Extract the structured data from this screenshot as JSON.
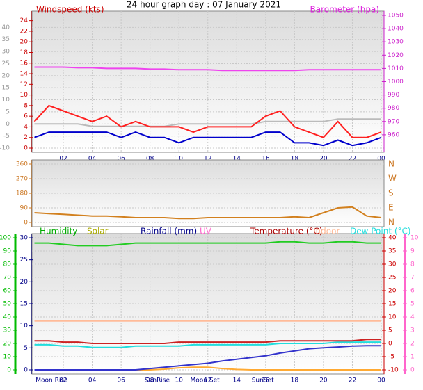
{
  "chart_data": [
    {
      "type": "line",
      "title": "24 hour graph day : 07 January 2021",
      "labels": [
        {
          "text": "Windspeed (kts)",
          "color": "#cc0000"
        },
        {
          "text": "Barometer (hpa)",
          "color": "#dd22dd"
        }
      ],
      "xlim": [
        0,
        24
      ],
      "xticks": [
        {
          "value": 2,
          "label": "02"
        },
        {
          "value": 4,
          "label": "04"
        },
        {
          "value": 6,
          "label": "06"
        },
        {
          "value": 8,
          "label": "08"
        },
        10,
        12,
        14,
        16,
        18,
        20,
        22,
        {
          "value": 24,
          "label": "00"
        }
      ],
      "grid": true,
      "axes": [
        {
          "lim": [
            -10,
            45
          ],
          "ticks": [
            -10,
            -5,
            0,
            5,
            10,
            15,
            20,
            25,
            30,
            35,
            40
          ],
          "color": "#999999"
        },
        {
          "lim": [
            0,
            25
          ],
          "ticks": [
            0,
            2,
            4,
            6,
            8,
            10,
            12,
            14,
            16,
            18,
            20,
            22,
            24
          ],
          "color": "#cc0000"
        },
        {
          "lim": [
            950,
            1050
          ],
          "ticks": [
            960,
            970,
            980,
            990,
            1000,
            1010,
            1020,
            1030,
            1040,
            1050
          ],
          "color": "#cc22cc"
        }
      ],
      "x": [
        0,
        1,
        2,
        3,
        4,
        5,
        6,
        7,
        8,
        9,
        10,
        11,
        12,
        13,
        14,
        15,
        16,
        17,
        18,
        19,
        20,
        21,
        22,
        23,
        24
      ],
      "series": [
        {
          "color": "#bbbbbb",
          "axis": 0,
          "values": [
            0,
            0,
            0,
            0,
            -1,
            -1,
            -1,
            -1,
            -1,
            -1,
            0,
            0,
            0,
            0,
            0,
            0,
            1,
            1,
            1,
            1,
            1,
            2,
            2,
            2,
            2
          ]
        },
        {
          "color": "#ff2020",
          "axis": 1,
          "values": [
            5,
            8,
            7,
            6,
            5,
            6,
            4,
            5,
            4,
            4,
            4,
            3,
            4,
            4,
            4,
            4,
            6,
            7,
            4,
            3,
            2,
            5,
            2,
            2,
            3
          ]
        },
        {
          "color": "#0000cc",
          "axis": 1,
          "values": [
            2,
            3,
            3,
            3,
            3,
            3,
            2,
            3,
            2,
            2,
            1,
            2,
            2,
            2,
            2,
            2,
            3,
            3,
            1,
            1,
            0.5,
            1.5,
            0.5,
            1,
            2
          ]
        },
        {
          "color": "#ee44ee",
          "axis": 2,
          "values": [
            1011,
            1011,
            1011,
            1010.5,
            1010.5,
            1010,
            1010,
            1010,
            1009.5,
            1009.5,
            1009,
            1009,
            1009,
            1008.5,
            1008.5,
            1008.5,
            1008.5,
            1008.5,
            1008.5,
            1009,
            1009,
            1009,
            1009,
            1009,
            1009
          ]
        }
      ]
    },
    {
      "type": "line",
      "xlim": [
        0,
        24
      ],
      "grid": true,
      "axes": [
        {
          "lim": [
            0,
            360
          ],
          "ticks": [
            0,
            90,
            180,
            270,
            360
          ],
          "color": "#cc7722"
        },
        {
          "lim": [
            0,
            360
          ],
          "ticks": [
            {
              "value": 0,
              "label": "N"
            },
            {
              "value": 90,
              "label": "E"
            },
            {
              "value": 180,
              "label": "S"
            },
            {
              "value": 270,
              "label": "W"
            },
            {
              "value": 360,
              "label": "N"
            }
          ],
          "color": "#cc7722"
        }
      ],
      "x": [
        0,
        1,
        2,
        3,
        4,
        5,
        6,
        7,
        8,
        9,
        10,
        11,
        12,
        13,
        14,
        15,
        16,
        17,
        18,
        19,
        20,
        21,
        22,
        23,
        24
      ],
      "series": [
        {
          "color": "#d2801e",
          "axis": 0,
          "values": [
            60,
            55,
            50,
            45,
            40,
            40,
            35,
            30,
            30,
            30,
            25,
            25,
            30,
            30,
            30,
            30,
            30,
            30,
            35,
            30,
            60,
            90,
            95,
            40,
            30
          ]
        }
      ]
    },
    {
      "type": "line",
      "labels": [
        {
          "text": "Humidity",
          "color": "#00aa00"
        },
        {
          "text": "Solar",
          "color": "#aaaa00"
        },
        {
          "text": "Rainfall (mm)",
          "color": "#000088"
        },
        {
          "text": "UV",
          "color": "#ff66cc"
        },
        {
          "text": "Temperature (°C)",
          "color": "#aa0000"
        },
        {
          "text": "Indoor",
          "color": "#ffbb99"
        },
        {
          "text": "Dew Point (°C)",
          "color": "#22dddd"
        }
      ],
      "xlim": [
        0,
        24
      ],
      "xticks": [
        {
          "value": 2,
          "label": "02"
        },
        {
          "value": 4,
          "label": "04"
        },
        {
          "value": 6,
          "label": "06"
        },
        {
          "value": 8,
          "label": "08"
        },
        10,
        12,
        14,
        16,
        18,
        20,
        22,
        {
          "value": 24,
          "label": "00"
        }
      ],
      "annotations": [
        {
          "label": "Moon Rise",
          "x": 1.2
        },
        {
          "label": "SunRise",
          "x": 8.5
        },
        {
          "label": "Moon Set",
          "x": 11.8
        },
        {
          "label": "SunSet",
          "x": 15.8
        }
      ],
      "grid": true,
      "axes": [
        {
          "lim": [
            0,
            100
          ],
          "ticks": [
            0,
            10,
            20,
            30,
            40,
            50,
            60,
            70,
            80,
            90,
            100
          ],
          "color": "#00bb00"
        },
        {
          "lim": [
            0,
            30
          ],
          "ticks": [
            0,
            5,
            10,
            15,
            20,
            25,
            30
          ],
          "color": "#000088"
        },
        {
          "lim": [
            -10,
            40
          ],
          "ticks": [
            -10,
            -5,
            0,
            5,
            10,
            15,
            20,
            25,
            30,
            35,
            40
          ],
          "color": "#cc0000"
        },
        {
          "lim": [
            0,
            10
          ],
          "ticks": [
            0,
            1,
            2,
            3,
            4,
            5,
            6,
            7,
            8,
            9,
            10
          ],
          "color": "#ff66cc"
        }
      ],
      "x": [
        0,
        1,
        2,
        3,
        4,
        5,
        6,
        7,
        8,
        9,
        10,
        11,
        12,
        13,
        14,
        15,
        16,
        17,
        18,
        19,
        20,
        21,
        22,
        23,
        24
      ],
      "series": [
        {
          "color": "#22cc22",
          "axis": 0,
          "values": [
            96,
            96,
            95,
            94,
            94,
            94,
            95,
            96,
            96,
            96,
            96,
            96,
            96,
            96,
            96,
            96,
            96,
            97,
            97,
            96,
            96,
            97,
            97,
            96,
            96
          ]
        },
        {
          "color": "#ffaa33",
          "axis": 0,
          "values": [
            0,
            0,
            0,
            0,
            0,
            0,
            0,
            0,
            0,
            0.5,
            1.5,
            2,
            2,
            1,
            0.3,
            0,
            0,
            0,
            0,
            0,
            0,
            0,
            0,
            0,
            0
          ]
        },
        {
          "color": "#3333cc",
          "axis": 1,
          "values": [
            0,
            0,
            0,
            0,
            0,
            0,
            0,
            0,
            0.3,
            0.6,
            0.9,
            1.2,
            1.5,
            2,
            2.4,
            2.8,
            3.2,
            3.8,
            4.3,
            4.8,
            5,
            5.2,
            5.4,
            5.5,
            5.5
          ]
        },
        {
          "color": "#ffbb99",
          "axis": 2,
          "values": [
            8.5,
            8.5,
            8.5,
            8.5,
            8.5,
            8.5,
            8.5,
            8.5,
            8.5,
            8.5,
            8.5,
            8.5,
            8.5,
            8.5,
            8.5,
            8.5,
            8.5,
            8.5,
            8.5,
            8.5,
            8.5,
            8.5,
            8.5,
            8.5,
            8.5
          ]
        },
        {
          "color": "#22dddd",
          "axis": 2,
          "values": [
            -0.5,
            -0.5,
            -1,
            -1,
            -1.5,
            -1.5,
            -1.5,
            -1,
            -1,
            -1,
            -1,
            -0.5,
            -0.5,
            -0.5,
            -0.5,
            -0.5,
            -0.5,
            0,
            0,
            0,
            0,
            0.5,
            0.5,
            0.5,
            0.5
          ]
        },
        {
          "color": "#cc2222",
          "axis": 2,
          "values": [
            1,
            1,
            0.5,
            0.5,
            0,
            0,
            0,
            0,
            0,
            0,
            0.5,
            0.5,
            0.5,
            0.5,
            0.5,
            0.5,
            0.5,
            1,
            1,
            1,
            1,
            1,
            1,
            1.5,
            1.5
          ]
        }
      ]
    }
  ]
}
